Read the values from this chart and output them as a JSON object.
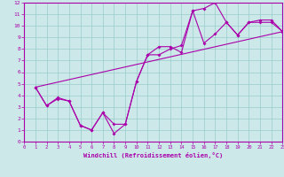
{
  "bg_color": "#cce8e8",
  "line_color": "#aa00aa",
  "grid_color": "#99cccc",
  "xlabel": "Windchill (Refroidissement éolien,°C)",
  "xlim": [
    0,
    23
  ],
  "ylim": [
    0,
    12
  ],
  "xticks": [
    0,
    1,
    2,
    3,
    4,
    5,
    6,
    7,
    8,
    9,
    10,
    11,
    12,
    13,
    14,
    15,
    16,
    17,
    18,
    19,
    20,
    21,
    22,
    23
  ],
  "yticks": [
    0,
    1,
    2,
    3,
    4,
    5,
    6,
    7,
    8,
    9,
    10,
    11,
    12
  ],
  "line1_x": [
    1,
    2,
    3,
    4,
    5,
    6,
    7,
    8,
    9,
    10,
    11,
    12,
    13,
    14,
    15,
    16,
    17,
    18,
    19,
    20,
    21,
    22,
    23
  ],
  "line1_y": [
    4.7,
    3.1,
    3.7,
    3.5,
    1.4,
    1.0,
    2.5,
    0.7,
    1.5,
    5.2,
    7.5,
    7.5,
    8.0,
    8.3,
    11.3,
    11.5,
    12.0,
    10.3,
    9.2,
    10.3,
    10.5,
    10.5,
    9.5
  ],
  "line2_x": [
    1,
    2,
    3,
    4,
    5,
    6,
    7,
    8,
    9,
    10,
    11,
    12,
    13,
    14,
    15,
    16,
    17,
    18,
    19,
    20,
    21,
    22,
    23
  ],
  "line2_y": [
    4.7,
    3.1,
    3.8,
    3.5,
    1.4,
    1.0,
    2.5,
    1.5,
    1.5,
    5.2,
    7.5,
    8.2,
    8.2,
    7.7,
    11.3,
    8.5,
    9.3,
    10.3,
    9.2,
    10.3,
    10.3,
    10.3,
    9.5
  ],
  "line3_x": [
    1,
    23
  ],
  "line3_y": [
    4.7,
    9.5
  ]
}
